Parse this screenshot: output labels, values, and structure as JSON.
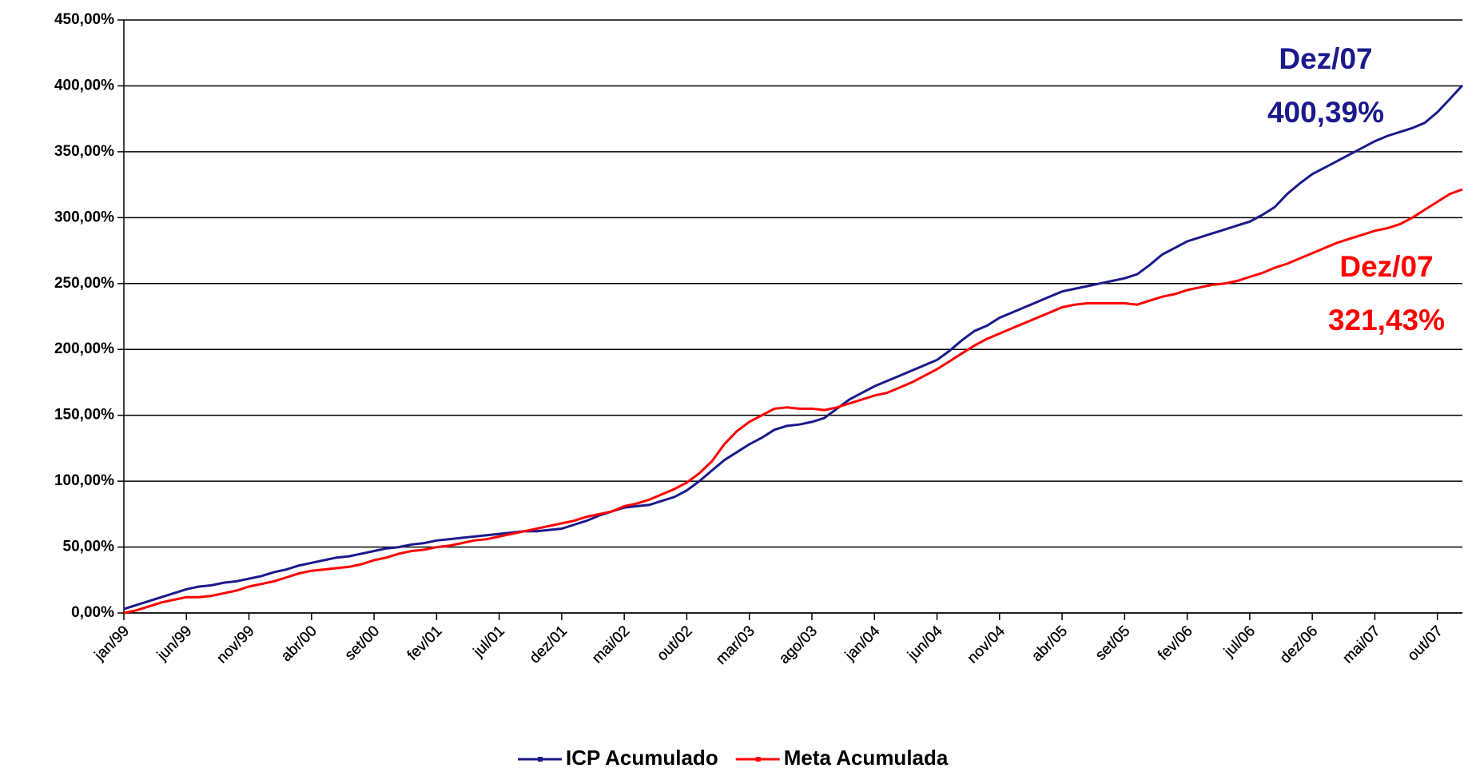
{
  "chart_data": {
    "type": "line",
    "categories": [
      "jan/99",
      null,
      null,
      null,
      null,
      "jun/99",
      null,
      null,
      null,
      null,
      "nov/99",
      null,
      null,
      null,
      null,
      "abr/00",
      null,
      null,
      null,
      null,
      "set/00",
      null,
      null,
      null,
      null,
      "fev/01",
      null,
      null,
      null,
      null,
      "jul/01",
      null,
      null,
      null,
      null,
      "dez/01",
      null,
      null,
      null,
      null,
      "mai/02",
      null,
      null,
      null,
      null,
      "out/02",
      null,
      null,
      null,
      null,
      "mar/03",
      null,
      null,
      null,
      null,
      "ago/03",
      null,
      null,
      null,
      null,
      "jan/04",
      null,
      null,
      null,
      null,
      "jun/04",
      null,
      null,
      null,
      null,
      "nov/04",
      null,
      null,
      null,
      null,
      "abr/05",
      null,
      null,
      null,
      null,
      "set/05",
      null,
      null,
      null,
      null,
      "fev/06",
      null,
      null,
      null,
      null,
      "jul/06",
      null,
      null,
      null,
      null,
      "dez/06",
      null,
      null,
      null,
      null,
      "mai/07",
      null,
      null,
      null,
      null,
      "out/07",
      null,
      null
    ],
    "series": [
      {
        "name": "ICP Acumulado",
        "color": "#1a1a8c",
        "values": [
          3,
          6,
          9,
          12,
          15,
          18,
          20,
          21,
          23,
          24,
          26,
          28,
          31,
          33,
          36,
          38,
          40,
          42,
          43,
          45,
          47,
          49,
          50,
          52,
          53,
          55,
          56,
          57,
          58,
          59,
          60,
          61,
          62,
          62,
          63,
          64,
          67,
          70,
          74,
          77,
          80,
          81,
          82,
          85,
          88,
          93,
          100,
          108,
          116,
          122,
          128,
          133,
          139,
          142,
          143,
          145,
          148,
          155,
          162,
          167,
          172,
          176,
          180,
          184,
          188,
          192,
          199,
          207,
          214,
          218,
          224,
          228,
          232,
          236,
          240,
          244,
          246,
          248,
          250,
          252,
          254,
          257,
          264,
          272,
          277,
          282,
          285,
          288,
          291,
          294,
          297,
          302,
          308,
          318,
          326,
          333,
          338,
          343,
          348,
          353,
          358,
          362,
          365,
          368,
          372,
          380,
          390,
          400.39
        ]
      },
      {
        "name": "Meta Acumulada",
        "color": "#ff0000",
        "values": [
          0,
          2,
          5,
          8,
          10,
          12,
          12,
          13,
          15,
          17,
          20,
          22,
          24,
          27,
          30,
          32,
          33,
          34,
          35,
          37,
          40,
          42,
          45,
          47,
          48,
          50,
          51,
          53,
          55,
          56,
          58,
          60,
          62,
          64,
          66,
          68,
          70,
          73,
          75,
          77,
          81,
          83,
          86,
          90,
          94,
          99,
          106,
          115,
          128,
          138,
          145,
          150,
          155,
          156,
          155,
          155,
          154,
          156,
          159,
          162,
          165,
          167,
          171,
          175,
          180,
          185,
          191,
          197,
          203,
          208,
          212,
          216,
          220,
          224,
          228,
          232,
          234,
          235,
          235,
          235,
          235,
          234,
          237,
          240,
          242,
          245,
          247,
          249,
          250,
          252,
          255,
          258,
          262,
          265,
          269,
          273,
          277,
          281,
          284,
          287,
          290,
          292,
          295,
          300,
          306,
          312,
          318,
          321.43
        ]
      }
    ],
    "annotations": [
      {
        "text": "Dez/07",
        "color": "#1a1a8c"
      },
      {
        "text": "400,39%",
        "color": "#1a1a8c"
      },
      {
        "text": "Dez/07",
        "color": "#ff0000"
      },
      {
        "text": "321,43%",
        "color": "#ff0000"
      }
    ],
    "ylim": [
      0,
      450
    ],
    "yticks": [
      {
        "value": 0,
        "label": "0,00%"
      },
      {
        "value": 50,
        "label": "50,00%"
      },
      {
        "value": 100,
        "label": "100,00%"
      },
      {
        "value": 150,
        "label": "150,00%"
      },
      {
        "value": 200,
        "label": "200,00%"
      },
      {
        "value": 250,
        "label": "250,00%"
      },
      {
        "value": 300,
        "label": "300,00%"
      },
      {
        "value": 350,
        "label": "350,00%"
      },
      {
        "value": 400,
        "label": "400,00%"
      },
      {
        "value": 450,
        "label": "450,00%"
      }
    ],
    "grid": true,
    "legend": "bottom"
  }
}
